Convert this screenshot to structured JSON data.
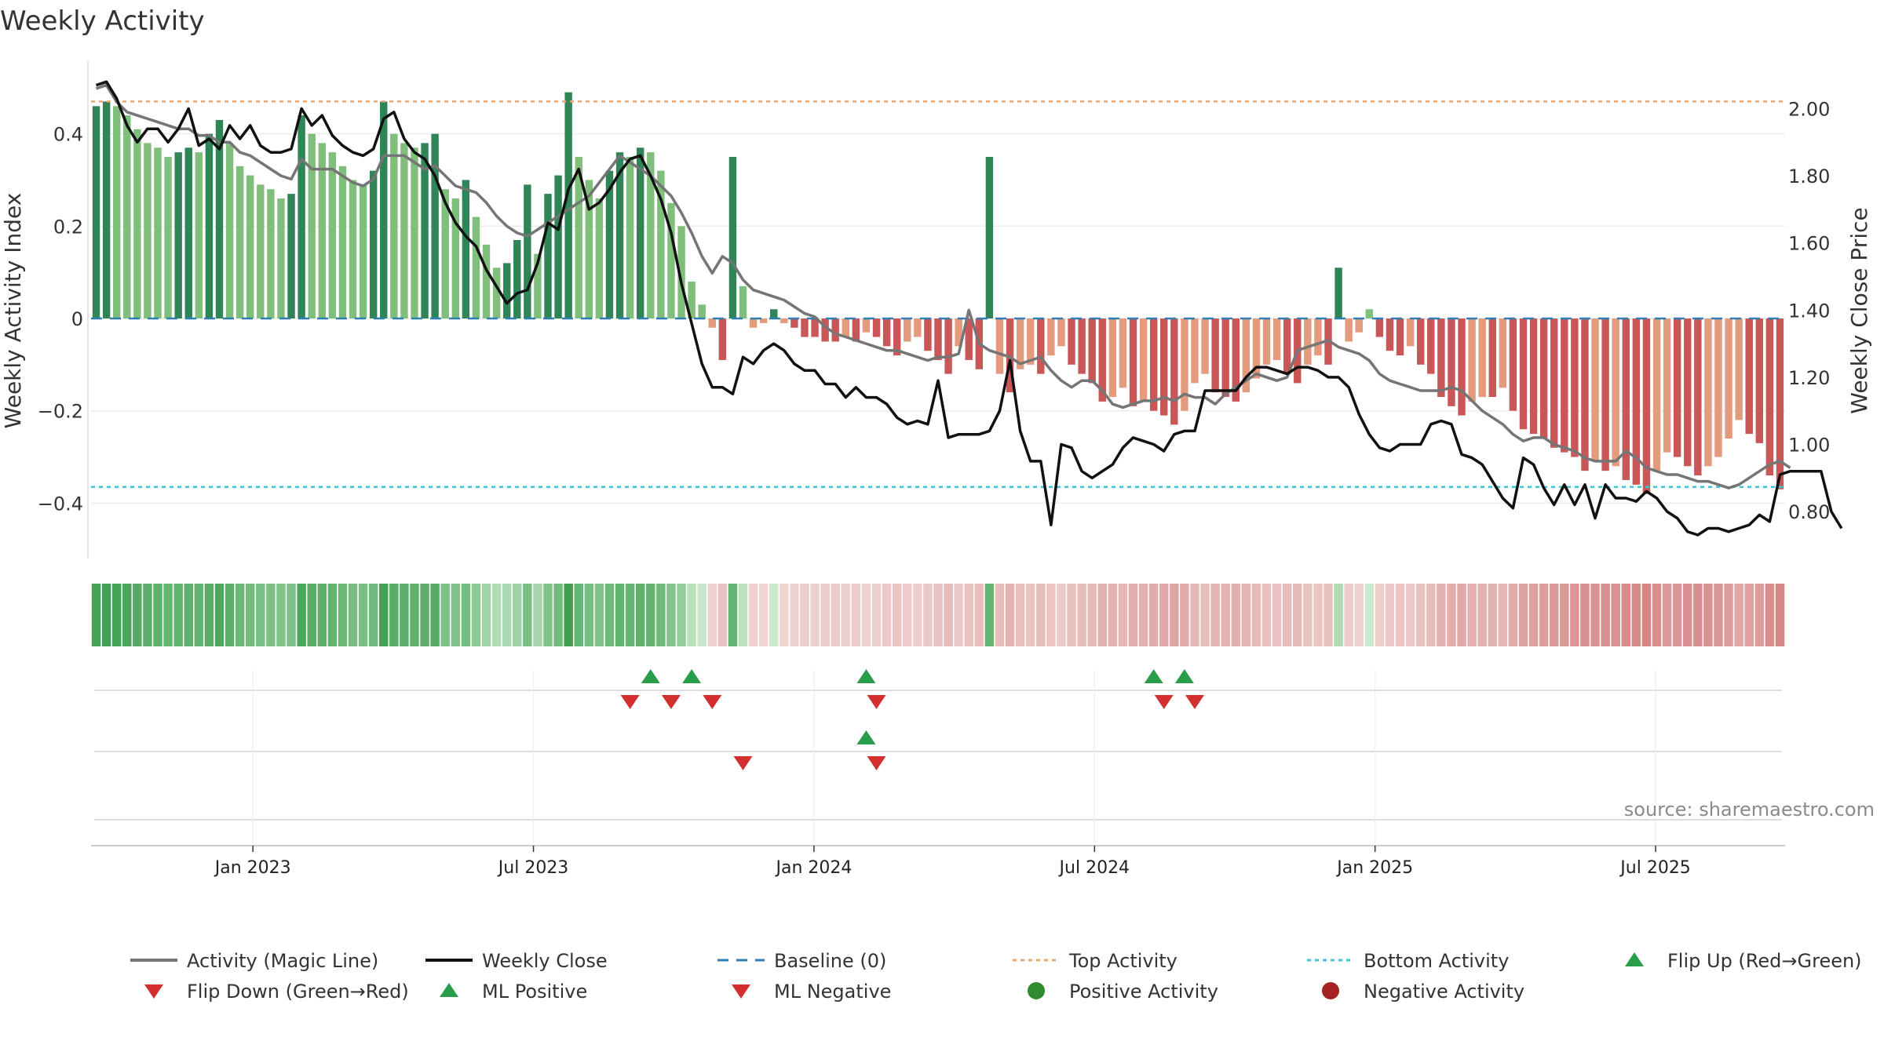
{
  "chart_data": {
    "type": "bar",
    "title": "Weekly Activity",
    "ylabel": "Weekly Activity Index",
    "y2label": "Weekly Close Price",
    "ylim": [
      -0.52,
      0.52
    ],
    "y2lim": [
      0.66,
      2.09
    ],
    "yticks": [
      {
        "v": 0.4,
        "label": "0.4"
      },
      {
        "v": 0.2,
        "label": "0.2"
      },
      {
        "v": 0,
        "label": "0"
      },
      {
        "v": -0.2,
        "label": "−0.2"
      },
      {
        "v": -0.4,
        "label": "−0.4"
      }
    ],
    "y2ticks": [
      {
        "v": 2.0,
        "label": "2.00"
      },
      {
        "v": 1.8,
        "label": "1.80"
      },
      {
        "v": 1.6,
        "label": "1.60"
      },
      {
        "v": 1.4,
        "label": "1.40"
      },
      {
        "v": 1.2,
        "label": "1.20"
      },
      {
        "v": 1.0,
        "label": "1.00"
      },
      {
        "v": 0.8,
        "label": "0.80"
      }
    ],
    "xrange_weeks": [
      0,
      157
    ],
    "xticks": [
      {
        "week": 15,
        "label": "Jan 2023"
      },
      {
        "week": 41,
        "label": "Jul 2023"
      },
      {
        "week": 67,
        "label": "Jan 2024"
      },
      {
        "week": 93,
        "label": "Jul 2024"
      },
      {
        "week": 119,
        "label": "Jan 2025"
      },
      {
        "week": 145,
        "label": "Jul 2025"
      }
    ],
    "top_activity": 0.47,
    "bottom_activity": -0.365,
    "baseline": 0,
    "activity": [
      0.46,
      0.47,
      0.46,
      0.44,
      0.41,
      0.38,
      0.37,
      0.35,
      0.36,
      0.37,
      0.36,
      0.4,
      0.43,
      0.38,
      0.33,
      0.31,
      0.29,
      0.28,
      0.26,
      0.27,
      0.44,
      0.4,
      0.38,
      0.36,
      0.33,
      0.3,
      0.29,
      0.32,
      0.47,
      0.4,
      0.38,
      0.37,
      0.38,
      0.4,
      0.28,
      0.26,
      0.3,
      0.22,
      0.16,
      0.11,
      0.12,
      0.17,
      0.29,
      0.14,
      0.27,
      0.31,
      0.49,
      0.35,
      0.3,
      0.26,
      0.32,
      0.36,
      0.35,
      0.37,
      0.36,
      0.32,
      0.25,
      0.2,
      0.08,
      0.03,
      -0.02,
      -0.09,
      0.35,
      0.07,
      -0.02,
      -0.01,
      0.02,
      -0.01,
      -0.02,
      -0.04,
      -0.04,
      -0.05,
      -0.05,
      -0.04,
      -0.05,
      -0.03,
      -0.04,
      -0.06,
      -0.08,
      -0.05,
      -0.04,
      -0.07,
      -0.09,
      -0.12,
      -0.06,
      -0.09,
      -0.11,
      0.35,
      -0.12,
      -0.16,
      -0.11,
      -0.1,
      -0.12,
      -0.08,
      -0.06,
      -0.1,
      -0.12,
      -0.14,
      -0.18,
      -0.17,
      -0.15,
      -0.19,
      -0.18,
      -0.2,
      -0.21,
      -0.23,
      -0.2,
      -0.14,
      -0.12,
      -0.16,
      -0.17,
      -0.18,
      -0.16,
      -0.13,
      -0.1,
      -0.09,
      -0.12,
      -0.14,
      -0.1,
      -0.08,
      -0.1,
      0.11,
      -0.05,
      -0.03,
      0.02,
      -0.04,
      -0.07,
      -0.08,
      -0.06,
      -0.1,
      -0.12,
      -0.17,
      -0.19,
      -0.21,
      -0.18,
      -0.17,
      -0.17,
      -0.15,
      -0.2,
      -0.24,
      -0.25,
      -0.26,
      -0.28,
      -0.29,
      -0.3,
      -0.33,
      -0.31,
      -0.33,
      -0.32,
      -0.35,
      -0.36,
      -0.38,
      -0.33,
      -0.29,
      -0.3,
      -0.32,
      -0.34,
      -0.32,
      -0.3,
      -0.26,
      -0.22,
      -0.25,
      -0.27,
      -0.34,
      -0.37
    ],
    "weekly_close": [
      2.07,
      2.08,
      2.03,
      1.95,
      1.9,
      1.94,
      1.94,
      1.9,
      1.94,
      2.0,
      1.89,
      1.91,
      1.88,
      1.95,
      1.91,
      1.95,
      1.89,
      1.87,
      1.87,
      1.88,
      2.0,
      1.95,
      1.98,
      1.92,
      1.89,
      1.87,
      1.86,
      1.88,
      1.97,
      1.99,
      1.91,
      1.87,
      1.85,
      1.8,
      1.72,
      1.66,
      1.62,
      1.59,
      1.52,
      1.47,
      1.42,
      1.45,
      1.46,
      1.54,
      1.66,
      1.64,
      1.76,
      1.82,
      1.7,
      1.72,
      1.76,
      1.81,
      1.85,
      1.86,
      1.8,
      1.73,
      1.63,
      1.48,
      1.36,
      1.24,
      1.17,
      1.17,
      1.15,
      1.26,
      1.24,
      1.28,
      1.3,
      1.28,
      1.24,
      1.22,
      1.22,
      1.18,
      1.18,
      1.14,
      1.17,
      1.14,
      1.14,
      1.12,
      1.08,
      1.06,
      1.07,
      1.06,
      1.19,
      1.02,
      1.03,
      1.03,
      1.03,
      1.04,
      1.1,
      1.25,
      1.04,
      0.95,
      0.95,
      0.76,
      1.0,
      0.99,
      0.92,
      0.9,
      0.92,
      0.94,
      0.99,
      1.02,
      1.01,
      1.0,
      0.98,
      1.03,
      1.04,
      1.04,
      1.16,
      1.16,
      1.16,
      1.16,
      1.2,
      1.23,
      1.23,
      1.22,
      1.21,
      1.23,
      1.23,
      1.22,
      1.2,
      1.2,
      1.17,
      1.09,
      1.03,
      0.99,
      0.98,
      1.0,
      1.0,
      1.0,
      1.06,
      1.07,
      1.06,
      0.97,
      0.96,
      0.94,
      0.89,
      0.84,
      0.81,
      0.96,
      0.94,
      0.87,
      0.82,
      0.88,
      0.82,
      0.88,
      0.78,
      0.88,
      0.84,
      0.84,
      0.83,
      0.86,
      0.84,
      0.8,
      0.78,
      0.74,
      0.73,
      0.75,
      0.75,
      0.74,
      0.75,
      0.76,
      0.79,
      0.77,
      0.91,
      0.92,
      0.92,
      0.92,
      0.92,
      0.8,
      0.75
    ],
    "magic_line": [
      2.06,
      2.07,
      2.02,
      1.99,
      1.98,
      1.97,
      1.96,
      1.95,
      1.94,
      1.94,
      1.92,
      1.92,
      1.9,
      1.9,
      1.87,
      1.86,
      1.84,
      1.82,
      1.8,
      1.79,
      1.85,
      1.82,
      1.82,
      1.82,
      1.8,
      1.78,
      1.77,
      1.79,
      1.86,
      1.86,
      1.86,
      1.84,
      1.82,
      1.83,
      1.8,
      1.77,
      1.76,
      1.75,
      1.72,
      1.68,
      1.65,
      1.63,
      1.62,
      1.64,
      1.66,
      1.68,
      1.7,
      1.72,
      1.74,
      1.78,
      1.82,
      1.86,
      1.84,
      1.82,
      1.8,
      1.77,
      1.74,
      1.69,
      1.63,
      1.56,
      1.51,
      1.56,
      1.54,
      1.49,
      1.46,
      1.45,
      1.44,
      1.43,
      1.41,
      1.39,
      1.38,
      1.35,
      1.33,
      1.32,
      1.31,
      1.3,
      1.29,
      1.28,
      1.28,
      1.27,
      1.26,
      1.25,
      1.26,
      1.26,
      1.27,
      1.4,
      1.3,
      1.28,
      1.27,
      1.26,
      1.24,
      1.25,
      1.26,
      1.22,
      1.19,
      1.17,
      1.19,
      1.19,
      1.16,
      1.12,
      1.11,
      1.12,
      1.13,
      1.13,
      1.14,
      1.13,
      1.15,
      1.14,
      1.14,
      1.12,
      1.15,
      1.17,
      1.19,
      1.21,
      1.2,
      1.19,
      1.2,
      1.28,
      1.29,
      1.3,
      1.31,
      1.29,
      1.28,
      1.27,
      1.25,
      1.21,
      1.19,
      1.18,
      1.17,
      1.16,
      1.16,
      1.16,
      1.17,
      1.16,
      1.13,
      1.1,
      1.08,
      1.06,
      1.03,
      1.01,
      1.02,
      1.02,
      1.0,
      0.99,
      0.98,
      0.96,
      0.95,
      0.95,
      0.95,
      0.98,
      0.96,
      0.93,
      0.92,
      0.91,
      0.91,
      0.9,
      0.89,
      0.89,
      0.88,
      0.87,
      0.88,
      0.9,
      0.92,
      0.94,
      0.95,
      0.93
    ],
    "ml_row1_up": [
      54,
      58,
      75,
      103,
      106
    ],
    "ml_row1_down": [
      52,
      56,
      60,
      76,
      104,
      107
    ],
    "ml_row2_up": [
      75
    ],
    "ml_row2_down": [
      63,
      76
    ],
    "source": "source: sharemaestro.com",
    "legend": [
      {
        "label": "Activity (Magic Line)",
        "kind": "line",
        "color": "#757575"
      },
      {
        "label": "Weekly Close",
        "kind": "line",
        "color": "#111111"
      },
      {
        "label": "Baseline (0)",
        "kind": "dash",
        "color": "#2f7fb5"
      },
      {
        "label": "Top Activity",
        "kind": "dot",
        "color": "#e8a872"
      },
      {
        "label": "Bottom Activity",
        "kind": "dot",
        "color": "#41c4d6"
      },
      {
        "label": "Flip Up (Red→Green)",
        "kind": "tri-up",
        "color": "#2a9d4a"
      },
      {
        "label": "Flip Down (Green→Red)",
        "kind": "tri-down",
        "color": "#d32f2f"
      },
      {
        "label": "ML Positive",
        "kind": "tri-up",
        "color": "#2a9d4a"
      },
      {
        "label": "ML Negative",
        "kind": "tri-down",
        "color": "#d32f2f"
      },
      {
        "label": "Positive Activity",
        "kind": "circle",
        "color": "#2e8b2e"
      },
      {
        "label": "Negative Activity",
        "kind": "circle",
        "color": "#a52222"
      }
    ],
    "colors": {
      "pos_strong": "#2f8555",
      "pos_light": "#7fbf7b",
      "neg_strong": "#c95757",
      "neg_light": "#e39a7d",
      "green_marker": "#2a9d4a",
      "red_marker": "#d32f2f"
    }
  }
}
